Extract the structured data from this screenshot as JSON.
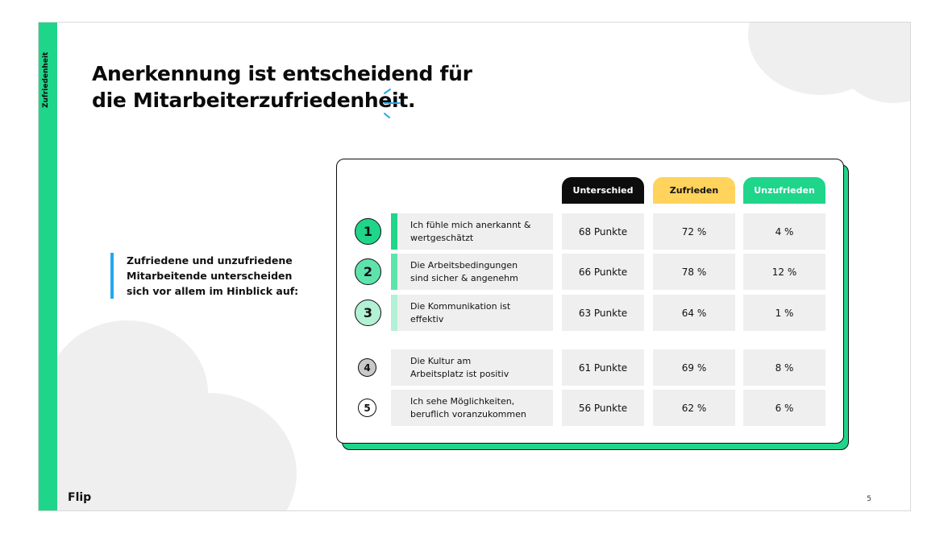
{
  "side_label": "Zufriedenheit",
  "title": {
    "line1": "Anerkennung ist entscheidend für",
    "line2": "die Mitarbeiterzufriedenheit."
  },
  "subhead": "Zufriedene und unzufriedene Mitarbeitende unterscheiden sich vor allem im Hinblick auf:",
  "table": {
    "headers": {
      "diff": "Unterschied",
      "satisfied": "Zufrieden",
      "unsatisfied": "Unzufrieden"
    },
    "rows": [
      {
        "num": "1",
        "label": "Ich fühle mich anerkannt & wertgeschätzt",
        "diff": "68 Punkte",
        "satisfied": "72 %",
        "unsatisfied": "4 %"
      },
      {
        "num": "2",
        "label": "Die Arbeitsbedingungen sind sicher & angenehm",
        "diff": "66 Punkte",
        "satisfied": "78 %",
        "unsatisfied": "12 %"
      },
      {
        "num": "3",
        "label": "Die Kommunikation ist effektiv",
        "diff": "63 Punkte",
        "satisfied": "64 %",
        "unsatisfied": "1 %"
      },
      {
        "num": "4",
        "label": "Die Kultur am Arbeitsplatz ist positiv",
        "diff": "61 Punkte",
        "satisfied": "69 %",
        "unsatisfied": "8 %"
      },
      {
        "num": "5",
        "label": "Ich sehe Möglichkeiten, beruflich voranzukommen",
        "diff": "56 Punkte",
        "satisfied": "62 %",
        "unsatisfied": "6 %"
      }
    ]
  },
  "colors": {
    "brand_green": "#1fd58a",
    "accent_blue": "#22a8f0",
    "header_dark": "#0d0d0d",
    "header_yellow": "#ffd35c",
    "row_bars": [
      "#1fd58a",
      "#5fe3ad",
      "#b2f1d6",
      "#efefef",
      "#efefef"
    ],
    "num_fills": [
      "#1fd58a",
      "#5fe3ad",
      "#b2f1d6",
      "#c9c9c9",
      "#ffffff"
    ]
  },
  "footer": {
    "logo": "Flip",
    "page": "5"
  }
}
